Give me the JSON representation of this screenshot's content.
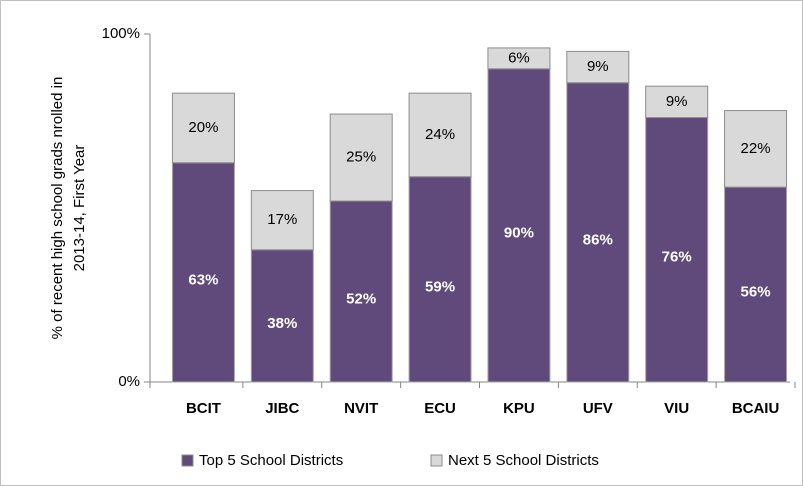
{
  "chart_data": {
    "type": "stacked_bar",
    "ylabel": [
      "% of recent high school grads nrolled in",
      "2013-14, First Year"
    ],
    "categories": [
      "BCIT",
      "JIBC",
      "NVIT",
      "ECU",
      "KPU",
      "UFV",
      "VIU",
      "BCAIU"
    ],
    "series": [
      {
        "name": "Top 5 School Districts",
        "color": "#604a7b",
        "values": [
          63,
          38,
          52,
          59,
          90,
          86,
          76,
          56
        ],
        "value_labels": [
          "63%",
          "38%",
          "52%",
          "59%",
          "90%",
          "86%",
          "76%",
          "56%"
        ]
      },
      {
        "name": "Next 5 School Districts",
        "color": "#d9d9d9",
        "values": [
          20,
          17,
          25,
          24,
          6,
          9,
          9,
          22
        ],
        "value_labels": [
          "20%",
          "17%",
          "25%",
          "24%",
          "6%",
          "9%",
          "9%",
          "22%"
        ]
      }
    ],
    "ylim": [
      0,
      100
    ],
    "yticks": [
      {
        "value": 0,
        "label": "0%"
      },
      {
        "value": 100,
        "label": "100%"
      }
    ],
    "legend": "bottom"
  }
}
